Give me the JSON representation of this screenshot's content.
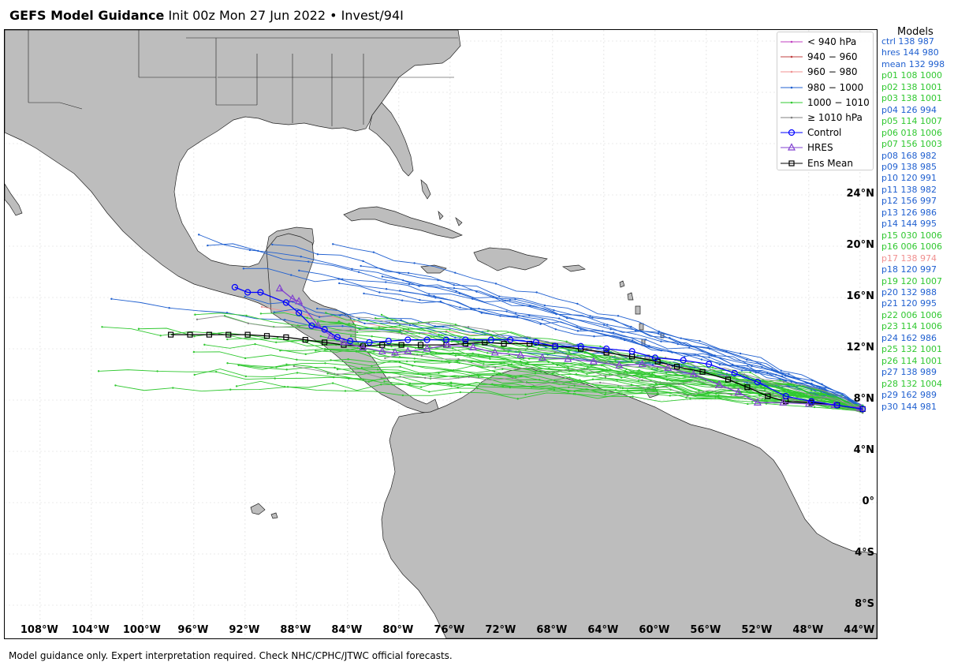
{
  "header": {
    "title_bold": "GEFS Model Guidance",
    "subtitle": "Init 00z Mon 27 Jun 2022 • Invest/94I"
  },
  "legend": [
    {
      "label": "< 940 hPa",
      "color": "#c040c0",
      "style": "dot"
    },
    {
      "label": "940 − 960",
      "color": "#c04040",
      "style": "dot"
    },
    {
      "label": "960 − 980",
      "color": "#f09090",
      "style": "dot"
    },
    {
      "label": "980 − 1000",
      "color": "#2060d0",
      "style": "dot"
    },
    {
      "label": "1000 − 1010",
      "color": "#30c830",
      "style": "dot"
    },
    {
      "label": "≥ 1010 hPa",
      "color": "#808080",
      "style": "dot"
    },
    {
      "label": "Control",
      "color": "#0000ff",
      "style": "circle"
    },
    {
      "label": "HRES",
      "color": "#8040d0",
      "style": "triangle"
    },
    {
      "label": "Ens Mean",
      "color": "#000000",
      "style": "square"
    }
  ],
  "models": {
    "title": "Models",
    "items": [
      {
        "text": "ctrl 138 987",
        "color": "#2060d0"
      },
      {
        "text": "hres 144 980",
        "color": "#2060d0"
      },
      {
        "text": "mean 132 998",
        "color": "#2060d0"
      },
      {
        "text": "p01 108 1000",
        "color": "#30c830"
      },
      {
        "text": "p02 138 1001",
        "color": "#30c830"
      },
      {
        "text": "p03 138 1001",
        "color": "#30c830"
      },
      {
        "text": "p04 126 994",
        "color": "#2060d0"
      },
      {
        "text": "p05 114 1007",
        "color": "#30c830"
      },
      {
        "text": "p06 018 1006",
        "color": "#30c830"
      },
      {
        "text": "p07 156 1003",
        "color": "#30c830"
      },
      {
        "text": "p08 168 982",
        "color": "#2060d0"
      },
      {
        "text": "p09 138 985",
        "color": "#2060d0"
      },
      {
        "text": "p10 120 991",
        "color": "#2060d0"
      },
      {
        "text": "p11 138 982",
        "color": "#2060d0"
      },
      {
        "text": "p12 156 997",
        "color": "#2060d0"
      },
      {
        "text": "p13 126 986",
        "color": "#2060d0"
      },
      {
        "text": "p14 144 995",
        "color": "#2060d0"
      },
      {
        "text": "p15 030 1006",
        "color": "#30c830"
      },
      {
        "text": "p16 006 1006",
        "color": "#30c830"
      },
      {
        "text": "p17 138 974",
        "color": "#f09090"
      },
      {
        "text": "p18 120 997",
        "color": "#2060d0"
      },
      {
        "text": "p19 120 1007",
        "color": "#30c830"
      },
      {
        "text": "p20 132 988",
        "color": "#2060d0"
      },
      {
        "text": "p21 120 995",
        "color": "#2060d0"
      },
      {
        "text": "p22 006 1006",
        "color": "#30c830"
      },
      {
        "text": "p23 114 1006",
        "color": "#30c830"
      },
      {
        "text": "p24 162 986",
        "color": "#2060d0"
      },
      {
        "text": "p25 132 1001",
        "color": "#30c830"
      },
      {
        "text": "p26 114 1001",
        "color": "#30c830"
      },
      {
        "text": "p27 138 989",
        "color": "#2060d0"
      },
      {
        "text": "p28 132 1004",
        "color": "#30c830"
      },
      {
        "text": "p29 162 989",
        "color": "#2060d0"
      },
      {
        "text": "p30 144 981",
        "color": "#2060d0"
      }
    ]
  },
  "axes": {
    "lat_labels": [
      "24°N",
      "20°N",
      "16°N",
      "12°N",
      "8°N",
      "4°N",
      "0°",
      "4°S",
      "8°S"
    ],
    "lon_labels": [
      "108°W",
      "104°W",
      "100°W",
      "96°W",
      "92°W",
      "88°W",
      "84°W",
      "80°W",
      "76°W",
      "72°W",
      "68°W",
      "64°W",
      "60°W",
      "56°W",
      "52°W",
      "48°W",
      "44°W"
    ]
  },
  "tracks": {
    "control": [
      [
        -43.8,
        7.3
      ],
      [
        -45.8,
        7.6
      ],
      [
        -47.8,
        7.9
      ],
      [
        -49.8,
        8.3
      ],
      [
        -52.0,
        9.4
      ],
      [
        -53.8,
        10.1
      ],
      [
        -55.8,
        10.8
      ],
      [
        -57.8,
        11.1
      ],
      [
        -60.0,
        11.3
      ],
      [
        -61.8,
        11.8
      ],
      [
        -63.8,
        12.0
      ],
      [
        -65.8,
        12.2
      ],
      [
        -67.8,
        12.2
      ],
      [
        -69.3,
        12.5
      ],
      [
        -71.3,
        12.7
      ],
      [
        -72.8,
        12.7
      ],
      [
        -74.8,
        12.7
      ],
      [
        -76.3,
        12.7
      ],
      [
        -77.8,
        12.7
      ],
      [
        -79.3,
        12.7
      ],
      [
        -80.8,
        12.6
      ],
      [
        -82.3,
        12.5
      ],
      [
        -83.8,
        12.6
      ],
      [
        -84.8,
        12.9
      ],
      [
        -85.8,
        13.5
      ],
      [
        -86.8,
        13.8
      ],
      [
        -87.8,
        14.8
      ],
      [
        -88.8,
        15.6
      ],
      [
        -90.8,
        16.4
      ],
      [
        -91.8,
        16.4
      ],
      [
        -92.8,
        16.8
      ]
    ],
    "hres": [
      [
        -44.0,
        7.4
      ],
      [
        -46.0,
        7.6
      ],
      [
        -48.0,
        7.7
      ],
      [
        -50.0,
        7.8
      ],
      [
        -52.0,
        7.8
      ],
      [
        -53.5,
        8.6
      ],
      [
        -55.0,
        9.2
      ],
      [
        -57.0,
        10.0
      ],
      [
        -59.0,
        10.5
      ],
      [
        -61.0,
        10.8
      ],
      [
        -62.8,
        10.7
      ],
      [
        -64.8,
        11.0
      ],
      [
        -66.8,
        11.2
      ],
      [
        -68.8,
        11.3
      ],
      [
        -70.5,
        11.5
      ],
      [
        -72.5,
        11.7
      ],
      [
        -74.2,
        12.1
      ],
      [
        -76.2,
        12.3
      ],
      [
        -77.8,
        12.0
      ],
      [
        -79.3,
        11.8
      ],
      [
        -80.3,
        11.7
      ],
      [
        -81.3,
        11.8
      ],
      [
        -82.8,
        12.1
      ],
      [
        -84.3,
        12.5
      ],
      [
        -85.3,
        13.0
      ],
      [
        -86.3,
        13.8
      ],
      [
        -87.8,
        15.7
      ],
      [
        -88.3,
        15.9
      ],
      [
        -89.3,
        16.7
      ]
    ],
    "mean": [
      [
        -43.8,
        7.3
      ],
      [
        -45.8,
        7.6
      ],
      [
        -47.8,
        7.8
      ],
      [
        -49.8,
        7.9
      ],
      [
        -51.2,
        8.3
      ],
      [
        -52.8,
        9.0
      ],
      [
        -54.3,
        9.6
      ],
      [
        -56.3,
        10.2
      ],
      [
        -58.3,
        10.6
      ],
      [
        -59.8,
        11.0
      ],
      [
        -61.8,
        11.4
      ],
      [
        -63.8,
        11.7
      ],
      [
        -65.8,
        12.0
      ],
      [
        -67.8,
        12.2
      ],
      [
        -69.8,
        12.4
      ],
      [
        -71.8,
        12.4
      ],
      [
        -73.3,
        12.5
      ],
      [
        -74.8,
        12.4
      ],
      [
        -76.3,
        12.3
      ],
      [
        -78.3,
        12.3
      ],
      [
        -79.8,
        12.3
      ],
      [
        -81.3,
        12.3
      ],
      [
        -82.8,
        12.2
      ],
      [
        -84.3,
        12.3
      ],
      [
        -85.8,
        12.5
      ],
      [
        -87.3,
        12.7
      ],
      [
        -88.8,
        12.9
      ],
      [
        -90.3,
        13.0
      ],
      [
        -91.8,
        13.1
      ],
      [
        -93.3,
        13.1
      ],
      [
        -94.8,
        13.1
      ],
      [
        -96.3,
        13.1
      ],
      [
        -97.8,
        13.1
      ]
    ]
  }
}
